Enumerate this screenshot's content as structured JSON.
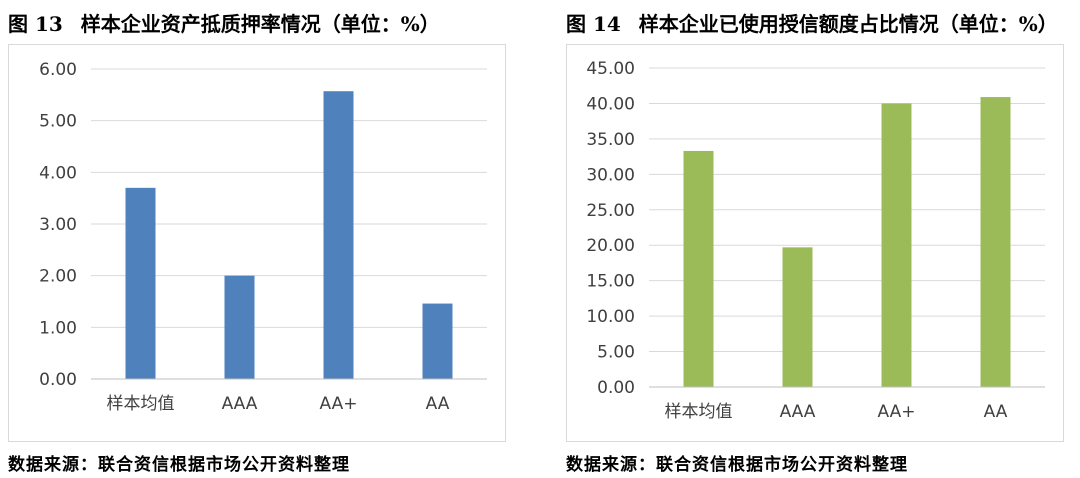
{
  "charts": [
    {
      "fig_number": "图 13",
      "title_text": "样本企业资产抵质押率情况（单位：%）",
      "source": "数据来源：联合资信根据市场公开资料整理"
    },
    {
      "fig_number": "图 14",
      "title_text": "样本企业已使用授信额度占比情况（单位：%）",
      "source": "数据来源：联合资信根据市场公开资料整理"
    }
  ],
  "chart_data": [
    {
      "type": "bar",
      "title": "样本企业资产抵质押率情况（单位：%）",
      "categories": [
        "样本均值",
        "AAA",
        "AA+",
        "AA"
      ],
      "values": [
        3.7,
        2.0,
        5.57,
        1.46
      ],
      "ylim": [
        0,
        6
      ],
      "yticks": [
        "0.00",
        "1.00",
        "2.00",
        "3.00",
        "4.00",
        "5.00",
        "6.00"
      ],
      "xlabel": "",
      "ylabel": "",
      "grid": true,
      "color": "#4f81bd"
    },
    {
      "type": "bar",
      "title": "样本企业已使用授信额度占比情况（单位：%）",
      "categories": [
        "样本均值",
        "AAA",
        "AA+",
        "AA"
      ],
      "values": [
        33.3,
        19.7,
        40.0,
        40.9
      ],
      "ylim": [
        0,
        45
      ],
      "yticks": [
        "0.00",
        "5.00",
        "10.00",
        "15.00",
        "20.00",
        "25.00",
        "30.00",
        "35.00",
        "40.00",
        "45.00"
      ],
      "xlabel": "",
      "ylabel": "",
      "grid": true,
      "color": "#9bbb59"
    }
  ]
}
